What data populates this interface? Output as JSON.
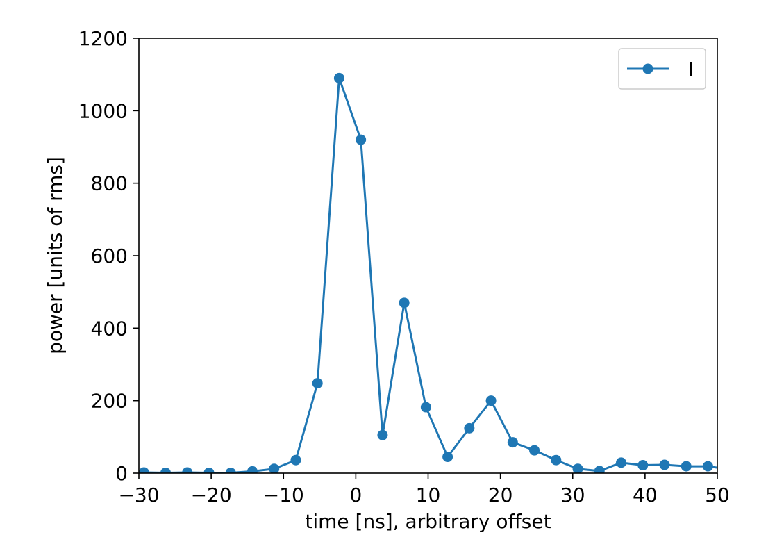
{
  "chart_data": {
    "type": "line",
    "title": "",
    "xlabel": "time [ns], arbitrary offset",
    "ylabel": "power [units of rms]",
    "xlim": [
      -30,
      50
    ],
    "ylim": [
      0,
      1200
    ],
    "xticks": [
      -30,
      -20,
      -10,
      0,
      10,
      20,
      30,
      40,
      50
    ],
    "yticks": [
      0,
      200,
      400,
      600,
      800,
      1000,
      1200
    ],
    "xtick_labels": [
      "−30",
      "−20",
      "−10",
      "0",
      "10",
      "20",
      "30",
      "40",
      "50"
    ],
    "ytick_labels": [
      "0",
      "200",
      "400",
      "600",
      "800",
      "1000",
      "1200"
    ],
    "grid": false,
    "legend_position": "top-right",
    "series": [
      {
        "name": "I",
        "color": "#1f77b4",
        "marker": "circle",
        "x": [
          -29.3,
          -26.3,
          -23.3,
          -20.3,
          -17.3,
          -14.3,
          -11.3,
          -8.3,
          -5.3,
          -2.3,
          0.7,
          3.7,
          6.7,
          9.7,
          12.7,
          15.7,
          18.7,
          21.7,
          24.7,
          27.7,
          30.7,
          33.7,
          36.7,
          39.7,
          42.7,
          45.7,
          48.7,
          51.0
        ],
        "y": [
          2,
          1,
          2,
          1,
          1,
          5,
          12,
          36,
          248,
          1090,
          920,
          105,
          470,
          182,
          45,
          124,
          200,
          85,
          63,
          36,
          12,
          6,
          29,
          22,
          23,
          19,
          19,
          12
        ]
      }
    ]
  }
}
